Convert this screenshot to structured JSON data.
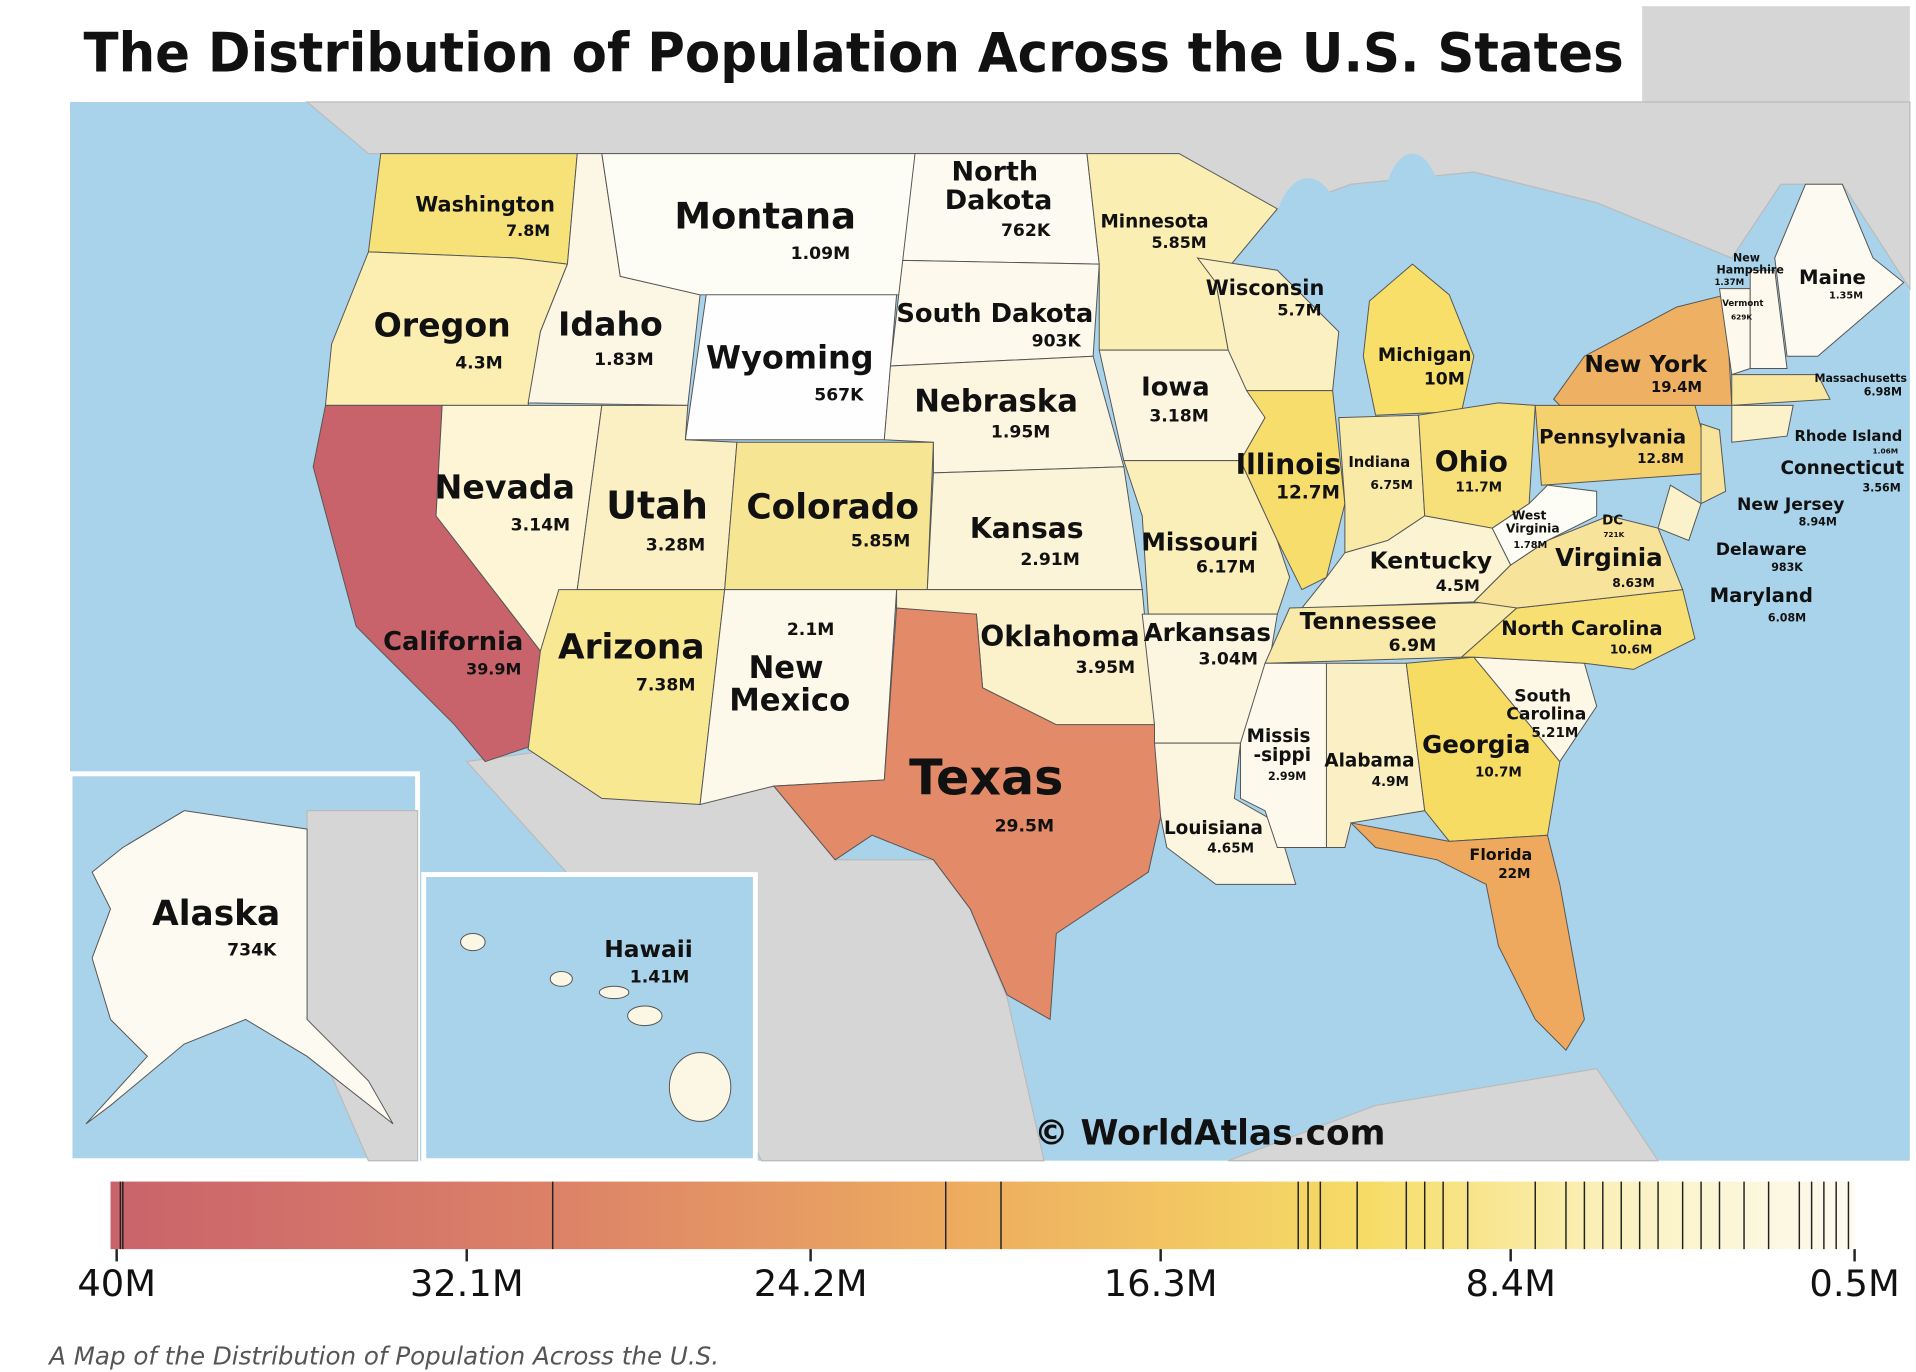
{
  "title": "The Distribution of Population Across the U.S. States",
  "states": [
    {
      "name": "Washington",
      "population": "7.8M"
    },
    {
      "name": "Montana",
      "population": "1.09M"
    },
    {
      "name": [
        "North",
        "Dakota"
      ],
      "population": "762K"
    },
    {
      "name": "Minnesota",
      "population": "5.85M"
    },
    {
      "name": "Oregon",
      "population": "4.3M"
    },
    {
      "name": "Idaho",
      "population": "1.83M"
    },
    {
      "name": "South Dakota",
      "population": "903K"
    },
    {
      "name": "Wisconsin",
      "population": "5.7M"
    },
    {
      "name": "Michigan",
      "population": "10M"
    },
    {
      "name": [
        "New",
        "Hampshire"
      ],
      "population": "1.37M"
    },
    {
      "name": "Maine",
      "population": "1.35M"
    },
    {
      "name": "Vermont",
      "population": "629K"
    },
    {
      "name": "Wyoming",
      "population": "567K"
    },
    {
      "name": "Iowa",
      "population": "3.18M"
    },
    {
      "name": "New York",
      "population": "19.4M"
    },
    {
      "name": "Massachusetts",
      "population": "6.98M"
    },
    {
      "name": "Nebraska",
      "population": "1.95M"
    },
    {
      "name": "Pennsylvania",
      "population": "12.8M"
    },
    {
      "name": "Rhode Island",
      "population": "1.06M"
    },
    {
      "name": "Nevada",
      "population": "3.14M"
    },
    {
      "name": "Utah",
      "population": "3.28M"
    },
    {
      "name": "Colorado",
      "population": "5.85M"
    },
    {
      "name": "Illinois",
      "population": "12.7M"
    },
    {
      "name": "Indiana",
      "population": "6.75M"
    },
    {
      "name": "Ohio",
      "population": "11.7M"
    },
    {
      "name": "Connecticut",
      "population": "3.56M"
    },
    {
      "name": "New Jersey",
      "population": "8.94M"
    },
    {
      "name": "Kansas",
      "population": "2.91M"
    },
    {
      "name": "Missouri",
      "population": "6.17M"
    },
    {
      "name": [
        "West",
        "Virginia"
      ],
      "population": "1.78M"
    },
    {
      "name": "DC",
      "population": "721K"
    },
    {
      "name": "Virginia",
      "population": "8.63M"
    },
    {
      "name": "Delaware",
      "population": "983K"
    },
    {
      "name": "Kentucky",
      "population": "4.5M"
    },
    {
      "name": "Maryland",
      "population": "6.08M"
    },
    {
      "name": "Arkansas",
      "population": "3.04M"
    },
    {
      "name": "Tennessee",
      "population": "6.9M"
    },
    {
      "name": "North Carolina",
      "population": "10.6M"
    },
    {
      "name": "California",
      "population": "39.9M"
    },
    {
      "name": "Oklahoma",
      "population": "3.95M"
    },
    {
      "name": [
        "New",
        "Mexico"
      ],
      "population": "2.1M"
    },
    {
      "name": "Arizona",
      "population": "7.38M"
    },
    {
      "name": [
        "South",
        "Carolina"
      ],
      "population": "5.21M"
    },
    {
      "name": [
        "Missis",
        "-sippi"
      ],
      "population": "2.99M"
    },
    {
      "name": "Alabama",
      "population": "4.9M"
    },
    {
      "name": "Georgia",
      "population": "10.7M"
    },
    {
      "name": "Texas",
      "population": "29.5M"
    },
    {
      "name": "Louisiana",
      "population": "4.65M"
    },
    {
      "name": "Florida",
      "population": "22M"
    },
    {
      "name": "Alaska",
      "population": "734K"
    },
    {
      "name": "Hawaii",
      "population": "1.41M"
    }
  ],
  "watermark": "© WorldAtlas.com",
  "legend": {
    "ticks": [
      "40M",
      "32.1M",
      "24.2M",
      "16.3M",
      "8.4M",
      "0.5M"
    ]
  },
  "caption": "A Map of the Distribution of Population Across the U.S."
}
